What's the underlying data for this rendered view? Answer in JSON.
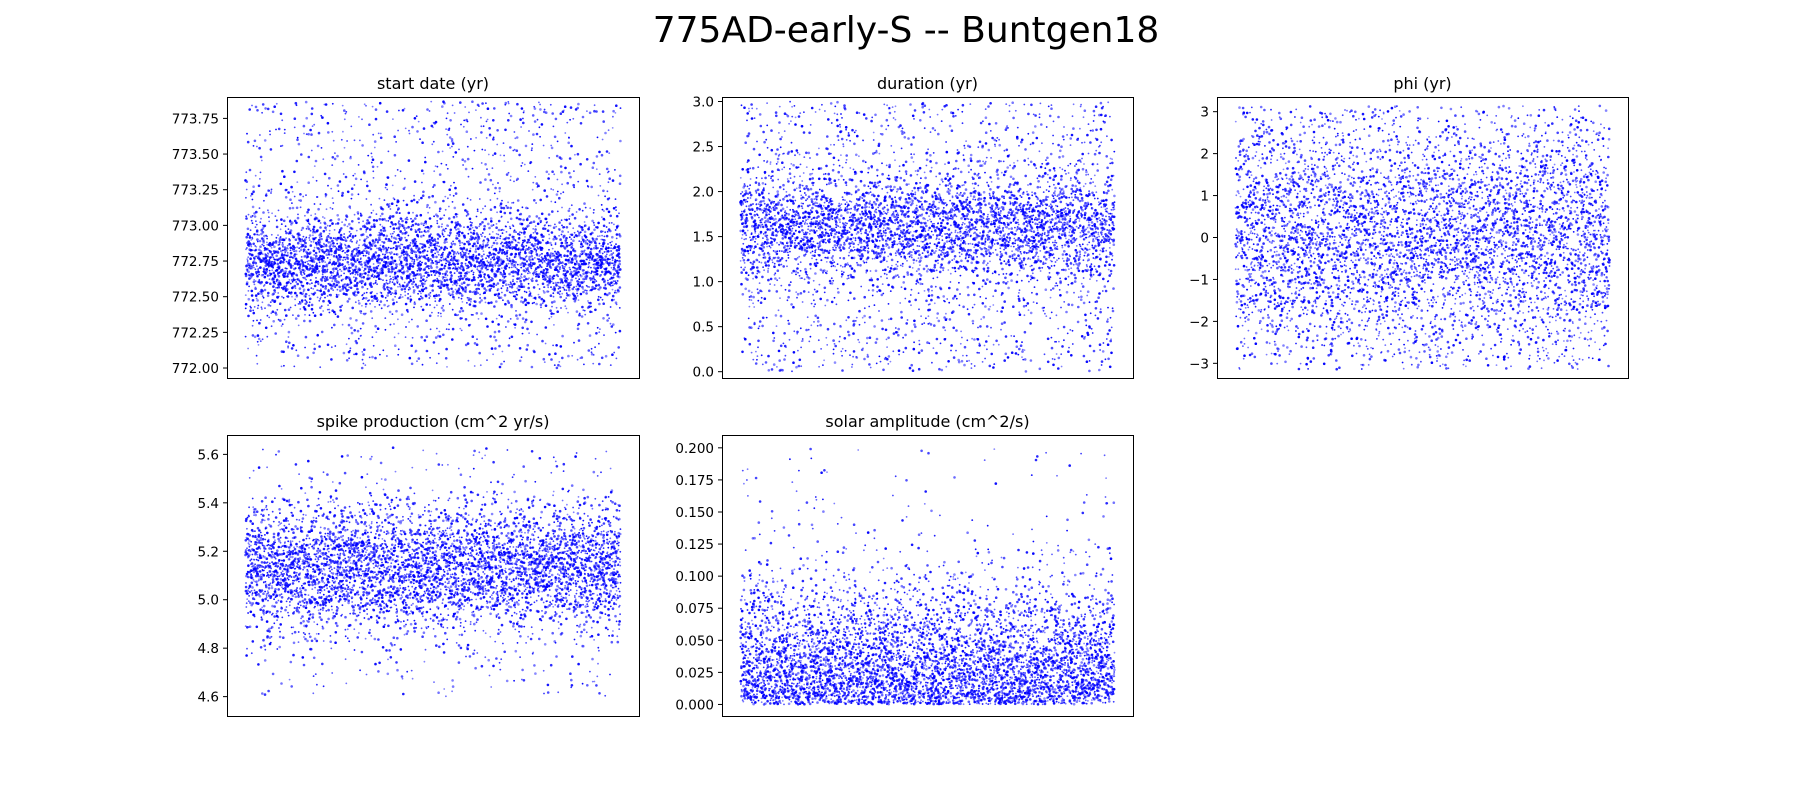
{
  "figure": {
    "title": "775AD-early-S -- Buntgen18",
    "point_color": "#0000ff"
  },
  "chart_data": [
    {
      "type": "scatter",
      "title": "start date (yr)",
      "ylim": [
        771.93,
        773.9
      ],
      "yticks": [
        772.0,
        772.25,
        772.5,
        772.75,
        773.0,
        773.25,
        773.5,
        773.75
      ],
      "ytick_labels": [
        "772.00",
        "772.25",
        "772.50",
        "772.75",
        "773.00",
        "773.25",
        "773.50",
        "773.75"
      ],
      "x_axis_shown": false,
      "distribution": {
        "n": 5000,
        "samples": 5000,
        "dense_center": 772.75,
        "dense_spread": 0.17,
        "sparse_range": [
          772.0,
          773.87
        ],
        "sparse_fraction": 0.28
      }
    },
    {
      "type": "scatter",
      "title": "duration (yr)",
      "ylim": [
        -0.07,
        3.05
      ],
      "yticks": [
        0.0,
        0.5,
        1.0,
        1.5,
        2.0,
        2.5,
        3.0
      ],
      "ytick_labels": [
        "0.0",
        "0.5",
        "1.0",
        "1.5",
        "2.0",
        "2.5",
        "3.0"
      ],
      "x_axis_shown": false,
      "distribution": {
        "n": 5000,
        "samples": 5000,
        "dense_center": 1.6,
        "dense_spread": 0.28,
        "sparse_range": [
          0.0,
          3.0
        ],
        "sparse_fraction": 0.35
      }
    },
    {
      "type": "scatter",
      "title": "phi (yr)",
      "ylim": [
        -3.35,
        3.35
      ],
      "yticks": [
        -3,
        -2,
        -1,
        0,
        1,
        2,
        3
      ],
      "ytick_labels": [
        "−3",
        "−2",
        "−1",
        "0",
        "1",
        "2",
        "3"
      ],
      "x_axis_shown": false,
      "distribution": {
        "n": 5000,
        "samples": 5000,
        "dense_center": 0.0,
        "dense_spread": 1.25,
        "sparse_range": [
          -3.14,
          3.14
        ],
        "sparse_fraction": 0.3
      }
    },
    {
      "type": "scatter",
      "title": "spike production (cm^2 yr/s)",
      "ylim": [
        4.52,
        5.68
      ],
      "yticks": [
        4.6,
        4.8,
        5.0,
        5.2,
        5.4,
        5.6
      ],
      "ytick_labels": [
        "4.6",
        "4.8",
        "5.0",
        "5.2",
        "5.4",
        "5.6"
      ],
      "x_axis_shown": false,
      "distribution": {
        "n": 5000,
        "samples": 5000,
        "dense_center": 5.13,
        "dense_spread": 0.13,
        "sparse_range": [
          4.6,
          5.63
        ],
        "sparse_fraction": 0.08
      }
    },
    {
      "type": "scatter",
      "title": "solar amplitude (cm^2/s)",
      "ylim": [
        -0.009,
        0.21
      ],
      "yticks": [
        0.0,
        0.025,
        0.05,
        0.075,
        0.1,
        0.125,
        0.15,
        0.175,
        0.2
      ],
      "ytick_labels": [
        "0.000",
        "0.025",
        "0.050",
        "0.075",
        "0.100",
        "0.125",
        "0.150",
        "0.175",
        "0.200"
      ],
      "x_axis_shown": false,
      "distribution": {
        "n": 5000,
        "samples": 5000,
        "dense_center": 0.0,
        "dense_spread": 0.045,
        "sparse_range": [
          0.0,
          0.2
        ],
        "sparse_fraction": 0.04
      }
    }
  ]
}
